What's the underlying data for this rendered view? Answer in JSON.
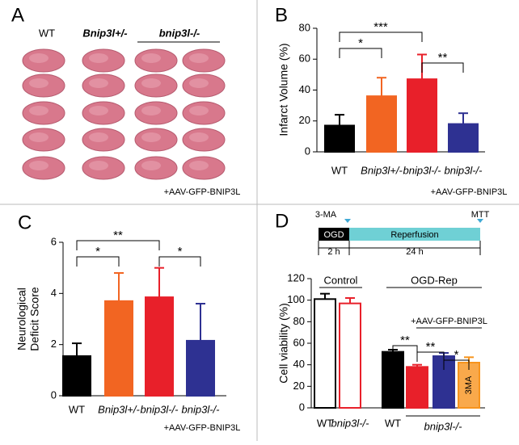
{
  "panel_a": {
    "panel_label": "A",
    "columns": [
      "WT",
      "Bnip3l+/-",
      "bnip3l-/-"
    ],
    "note": "+AAV-GFP-BNIP3L"
  },
  "chart_data": [
    {
      "type": "bar",
      "panel_label": "B",
      "ylabel": "Infarct Volume (%)",
      "categories": [
        "WT",
        "Bnip3l+/-",
        "bnip3l-/-",
        "bnip3l-/-"
      ],
      "values": [
        17,
        36,
        47,
        18
      ],
      "errors": [
        7,
        12,
        16,
        7
      ],
      "colors": [
        "#000000",
        "#f26522",
        "#e8202a",
        "#2e3192"
      ],
      "ylim": [
        0,
        80
      ],
      "yticks": [
        0,
        20,
        40,
        60,
        80
      ],
      "significance": [
        "*",
        "***",
        "**"
      ],
      "note": "+AAV-GFP-BNIP3L"
    },
    {
      "type": "bar",
      "panel_label": "C",
      "ylabel": [
        "Neurological",
        "Deficit Score"
      ],
      "categories": [
        "WT",
        "Bnip3l+/-",
        "bnip3l-/-",
        "bnip3l-/-"
      ],
      "values": [
        1.55,
        3.7,
        3.85,
        2.15
      ],
      "errors": [
        0.5,
        1.1,
        1.15,
        1.45
      ],
      "colors": [
        "#000000",
        "#f26522",
        "#e8202a",
        "#2e3192"
      ],
      "ylim": [
        0,
        6
      ],
      "yticks": [
        0,
        2,
        4,
        6
      ],
      "significance": [
        "*",
        "**",
        "*"
      ],
      "note": "+AAV-GFP-BNIP3L"
    },
    {
      "type": "bar",
      "panel_label": "D",
      "ylabel": "Cell viability (%)",
      "categories": [
        "WT",
        "bnip3l-/-",
        "WT",
        null,
        null,
        null
      ],
      "group_label": "bnip3l-/-",
      "values": [
        101,
        97,
        52,
        38,
        48,
        42
      ],
      "errors": [
        5,
        5,
        2,
        2,
        3,
        5
      ],
      "colors": [
        "#000000",
        "#e8202a",
        "#000000",
        "#e8202a",
        "#2e3192",
        "#f7941d"
      ],
      "fills": [
        "#ffffff",
        "#ffffff",
        "#000000",
        "#e8202a",
        "#2e3192",
        "#f9a94b"
      ],
      "inner_label": "3MA",
      "ylim": [
        0,
        120
      ],
      "yticks": [
        0,
        20,
        40,
        60,
        80,
        100,
        120
      ],
      "significance": [
        "**",
        "**",
        "*"
      ],
      "groups": [
        "Control",
        "OGD-Rep",
        "+AAV-GFP-BNIP3L"
      ],
      "timeline": {
        "start_marker": "3-MA",
        "end_marker": "MTT",
        "phase1": "OGD",
        "phase2": "Reperfusion",
        "dur1": "2 h",
        "dur2": "24 h"
      }
    }
  ]
}
